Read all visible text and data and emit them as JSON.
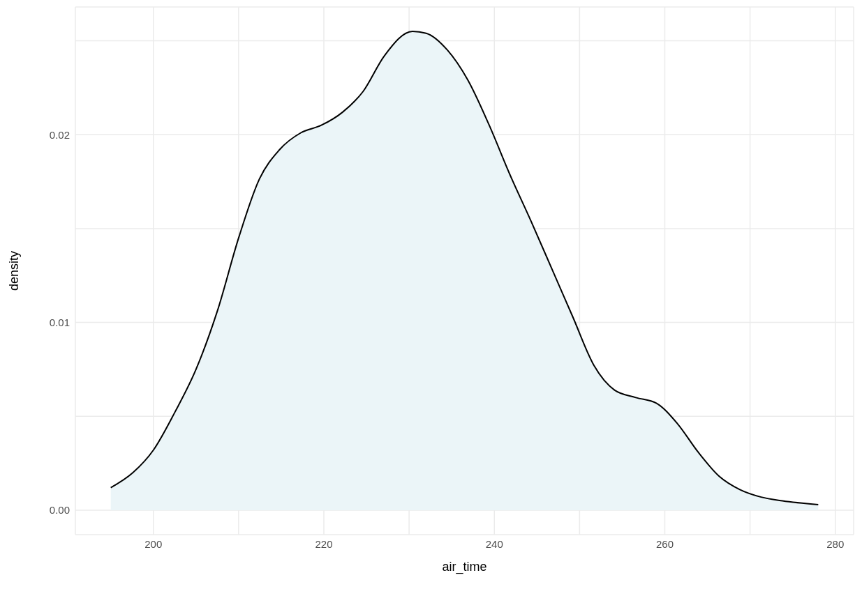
{
  "chart_data": {
    "type": "area",
    "xlabel": "air_time",
    "ylabel": "density",
    "x": [
      195,
      197.6,
      200,
      202.5,
      205,
      207.5,
      210,
      212.4,
      214.8,
      217.3,
      219.7,
      222.2,
      224.6,
      227.1,
      230.4,
      232,
      234.5,
      236.9,
      239.4,
      241.8,
      244.3,
      246.8,
      249.2,
      251.7,
      254.1,
      256.6,
      259,
      261.5,
      263.9,
      266.4,
      268.8,
      271.3,
      273.8,
      278
    ],
    "series": [
      {
        "color": "#ebf5f8",
        "values": [
          0.0012,
          0.002,
          0.0032,
          0.0052,
          0.0075,
          0.0106,
          0.0145,
          0.0176,
          0.0192,
          0.0201,
          0.0205,
          0.0212,
          0.0223,
          0.0242,
          0.0255,
          0.0254,
          0.0245,
          0.0229,
          0.0205,
          0.0179,
          0.0154,
          0.0128,
          0.0103,
          0.0077,
          0.0064,
          0.006,
          0.0057,
          0.0046,
          0.0031,
          0.0018,
          0.0011,
          0.0007,
          0.0005,
          0.0003
        ]
      }
    ],
    "xlim": [
      190.85,
      282.15
    ],
    "ylim": [
      -0.0013,
      0.0268
    ],
    "xticks": [
      200,
      {
        "value": 210,
        "label": null
      },
      220,
      {
        "value": 230,
        "label": null
      },
      240,
      {
        "value": 250,
        "label": null
      },
      260,
      {
        "value": 270,
        "label": null
      },
      280
    ],
    "yticks": [
      {
        "value": 0,
        "label": "0.00"
      },
      {
        "value": 0.005,
        "label": null
      },
      {
        "value": 0.01,
        "label": "0.01"
      },
      {
        "value": 0.015,
        "label": null
      },
      {
        "value": 0.02,
        "label": "0.02"
      },
      {
        "value": 0.025,
        "label": null
      }
    ],
    "grid": true
  }
}
